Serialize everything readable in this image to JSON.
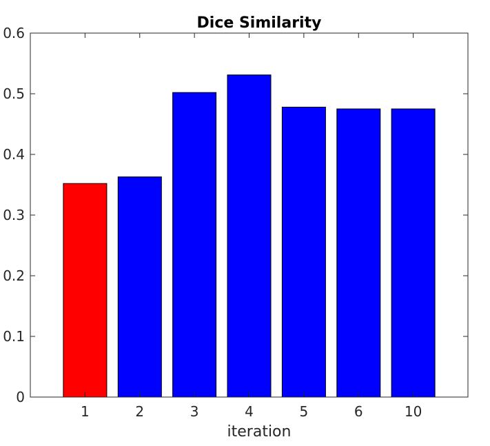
{
  "chart_data": {
    "type": "bar",
    "title": "Dice Similarity",
    "xlabel": "iteration",
    "ylabel": "",
    "categories": [
      "1",
      "2",
      "3",
      "4",
      "5",
      "6",
      "10"
    ],
    "values": [
      0.352,
      0.363,
      0.502,
      0.531,
      0.478,
      0.475,
      0.475
    ],
    "bar_colors": [
      "#ff0000",
      "#0000ff",
      "#0000ff",
      "#0000ff",
      "#0000ff",
      "#0000ff",
      "#0000ff"
    ],
    "ylim": [
      0,
      0.6
    ],
    "yticks": [
      0,
      0.1,
      0.2,
      0.3,
      0.4,
      0.5,
      0.6
    ],
    "ytick_labels": [
      "0",
      "0.1",
      "0.2",
      "0.3",
      "0.4",
      "0.5",
      "0.6"
    ],
    "grid": false,
    "legend": "none"
  }
}
